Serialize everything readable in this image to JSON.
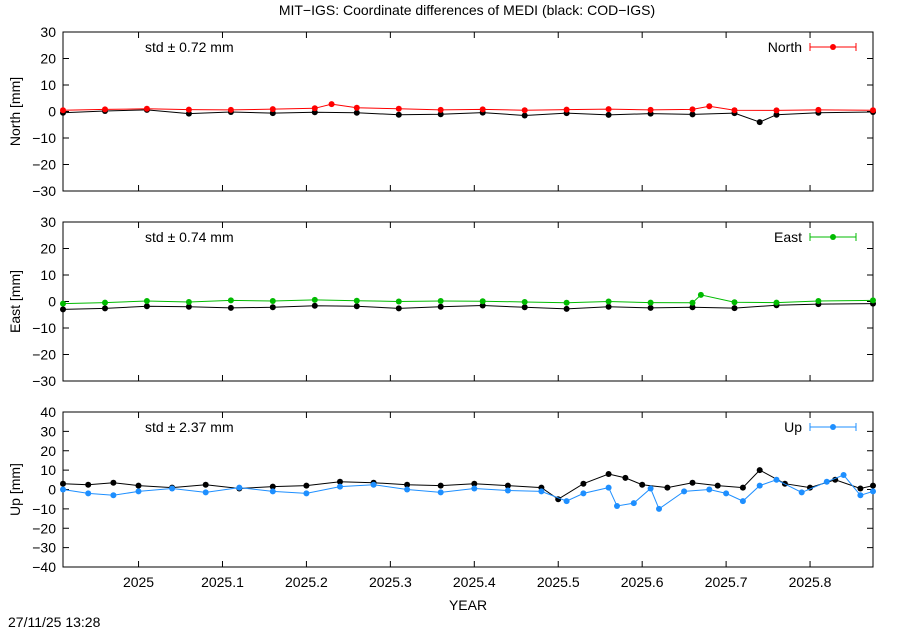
{
  "title": "MIT−IGS: Coordinate differences of MEDI (black: COD−IGS)",
  "timestamp": "27/11/25 13:28",
  "xlabel": "YEAR",
  "x_ticks": [
    "2025",
    "2025.1",
    "2025.2",
    "2025.3",
    "2025.4",
    "2025.5",
    "2025.6",
    "2025.7",
    "2025.8"
  ],
  "chart_data": [
    {
      "type": "line",
      "component": "North",
      "ylabel": "North [mm]",
      "ylim": [
        -30,
        30
      ],
      "y_ticks": [
        "30",
        "20",
        "10",
        "0",
        "−10",
        "−20",
        "−30"
      ],
      "xlim": [
        2024.91,
        2025.875
      ],
      "std_label": "std ± 0.72 mm",
      "legend": "North",
      "legend_position": "top-right",
      "color": "#ff0000",
      "series": [
        {
          "name": "North",
          "color": "#ff0000",
          "x": [
            2024.91,
            2024.96,
            2025.01,
            2025.06,
            2025.11,
            2025.16,
            2025.21,
            2025.23,
            2025.26,
            2025.31,
            2025.36,
            2025.41,
            2025.46,
            2025.51,
            2025.56,
            2025.61,
            2025.66,
            2025.68,
            2025.71,
            2025.76,
            2025.81,
            2025.875
          ],
          "y": [
            0.5,
            0.8,
            1.0,
            0.7,
            0.6,
            0.9,
            1.2,
            2.8,
            1.4,
            1.0,
            0.6,
            0.8,
            0.5,
            0.7,
            0.9,
            0.6,
            0.8,
            2.0,
            0.5,
            0.4,
            0.6,
            0.5
          ]
        },
        {
          "name": "COD−IGS",
          "color": "#000000",
          "x": [
            2024.91,
            2024.96,
            2025.01,
            2025.06,
            2025.11,
            2025.16,
            2025.21,
            2025.26,
            2025.31,
            2025.36,
            2025.41,
            2025.46,
            2025.51,
            2025.56,
            2025.61,
            2025.66,
            2025.71,
            2025.74,
            2025.76,
            2025.81,
            2025.875
          ],
          "y": [
            -0.5,
            0.2,
            0.6,
            -0.8,
            -0.2,
            -0.6,
            -0.3,
            -0.5,
            -1.2,
            -1.0,
            -0.4,
            -1.5,
            -0.6,
            -1.3,
            -0.8,
            -1.1,
            -0.6,
            -4.0,
            -1.2,
            -0.5,
            -0.2
          ]
        }
      ]
    },
    {
      "type": "line",
      "component": "East",
      "ylabel": "East [mm]",
      "ylim": [
        -30,
        30
      ],
      "y_ticks": [
        "30",
        "20",
        "10",
        "0",
        "−10",
        "−20",
        "−30"
      ],
      "xlim": [
        2024.91,
        2025.875
      ],
      "std_label": "std ± 0.74 mm",
      "legend": "East",
      "legend_position": "top-right",
      "color": "#00bb00",
      "series": [
        {
          "name": "East",
          "color": "#00bb00",
          "x": [
            2024.91,
            2024.96,
            2025.01,
            2025.06,
            2025.11,
            2025.16,
            2025.21,
            2025.26,
            2025.31,
            2025.36,
            2025.41,
            2025.46,
            2025.51,
            2025.56,
            2025.61,
            2025.66,
            2025.67,
            2025.71,
            2025.76,
            2025.81,
            2025.875
          ],
          "y": [
            -0.8,
            -0.4,
            0.2,
            -0.2,
            0.4,
            0.2,
            0.6,
            0.3,
            0.0,
            0.2,
            0.1,
            -0.2,
            -0.5,
            0.0,
            -0.4,
            -0.5,
            2.5,
            -0.3,
            -0.4,
            0.2,
            0.4
          ]
        },
        {
          "name": "COD−IGS",
          "color": "#000000",
          "x": [
            2024.91,
            2024.96,
            2025.01,
            2025.06,
            2025.11,
            2025.16,
            2025.21,
            2025.26,
            2025.31,
            2025.36,
            2025.41,
            2025.46,
            2025.51,
            2025.56,
            2025.61,
            2025.66,
            2025.71,
            2025.76,
            2025.81,
            2025.875
          ],
          "y": [
            -3.0,
            -2.6,
            -1.8,
            -2.0,
            -2.4,
            -2.2,
            -1.6,
            -1.8,
            -2.6,
            -2.0,
            -1.5,
            -2.2,
            -2.8,
            -2.0,
            -2.4,
            -2.2,
            -2.5,
            -1.4,
            -1.0,
            -0.8
          ]
        }
      ]
    },
    {
      "type": "line",
      "component": "Up",
      "ylabel": "Up [mm]",
      "ylim": [
        -40,
        40
      ],
      "y_ticks": [
        "40",
        "30",
        "20",
        "10",
        "0",
        "−10",
        "−20",
        "−30",
        "−40"
      ],
      "xlim": [
        2024.91,
        2025.875
      ],
      "std_label": "std ± 2.37 mm",
      "legend": "Up",
      "legend_position": "top-right",
      "color": "#1e8fff",
      "series": [
        {
          "name": "Up",
          "color": "#1e8fff",
          "x": [
            2024.91,
            2024.94,
            2024.97,
            2025.0,
            2025.04,
            2025.08,
            2025.12,
            2025.16,
            2025.2,
            2025.24,
            2025.28,
            2025.32,
            2025.36,
            2025.4,
            2025.44,
            2025.48,
            2025.51,
            2025.53,
            2025.56,
            2025.57,
            2025.59,
            2025.61,
            2025.62,
            2025.65,
            2025.68,
            2025.7,
            2025.72,
            2025.74,
            2025.76,
            2025.79,
            2025.82,
            2025.84,
            2025.86,
            2025.875
          ],
          "y": [
            0.0,
            -2.0,
            -3.0,
            -1.0,
            0.5,
            -1.5,
            1.0,
            -1.0,
            -2.0,
            1.5,
            2.5,
            0.0,
            -1.5,
            0.5,
            -0.5,
            -1.0,
            -6.0,
            -2.0,
            1.0,
            -8.5,
            -7.0,
            0.5,
            -10.0,
            -1.0,
            0.0,
            -2.0,
            -6.0,
            2.0,
            5.0,
            -1.5,
            4.0,
            7.5,
            -3.0,
            -1.0
          ]
        },
        {
          "name": "COD−IGS",
          "color": "#000000",
          "x": [
            2024.91,
            2024.94,
            2024.97,
            2025.0,
            2025.04,
            2025.08,
            2025.12,
            2025.16,
            2025.2,
            2025.24,
            2025.28,
            2025.32,
            2025.36,
            2025.4,
            2025.44,
            2025.48,
            2025.5,
            2025.53,
            2025.56,
            2025.58,
            2025.6,
            2025.63,
            2025.66,
            2025.69,
            2025.72,
            2025.74,
            2025.77,
            2025.8,
            2025.83,
            2025.86,
            2025.875
          ],
          "y": [
            3.0,
            2.5,
            3.5,
            2.0,
            1.0,
            2.5,
            0.5,
            1.5,
            2.0,
            4.0,
            3.5,
            2.5,
            2.0,
            3.0,
            2.0,
            1.0,
            -5.0,
            3.0,
            8.0,
            6.0,
            2.5,
            1.0,
            3.5,
            2.0,
            1.0,
            10.0,
            3.0,
            1.0,
            5.0,
            0.5,
            2.0
          ]
        }
      ]
    }
  ],
  "icons": {
    "legend_marker": "errorbar-dot-icon"
  }
}
